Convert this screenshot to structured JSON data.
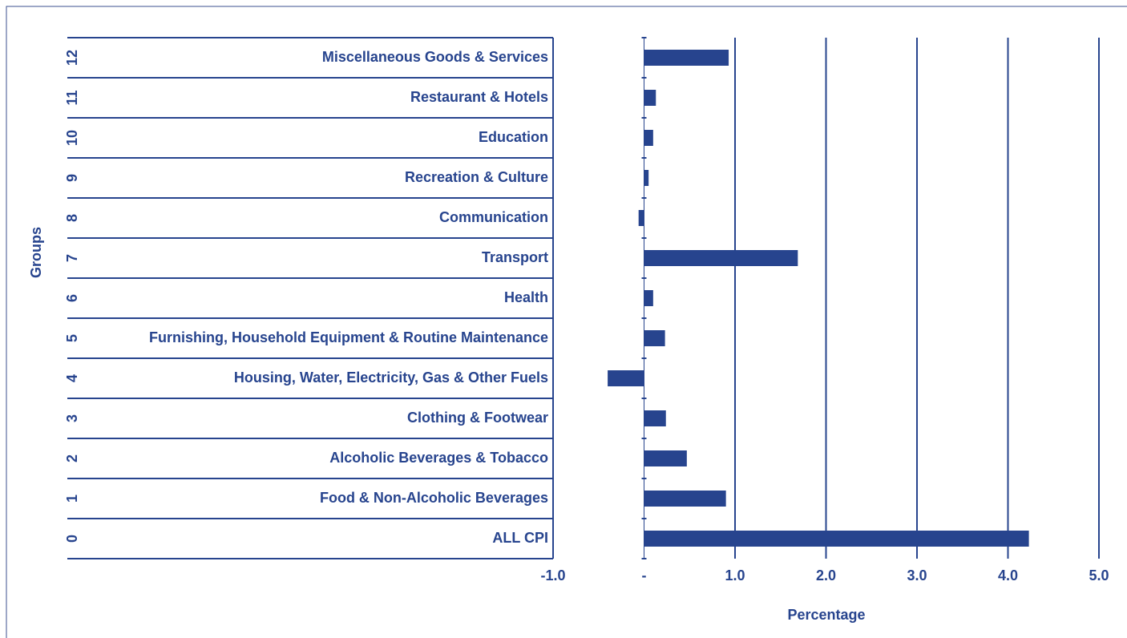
{
  "chart_data": {
    "type": "barh",
    "y_label": "Groups",
    "x_label": "Percentage",
    "groups": [
      "12",
      "11",
      "10",
      "9",
      "8",
      "7",
      "6",
      "5",
      "4",
      "3",
      "2",
      "1",
      "0"
    ],
    "categories": [
      "Miscellaneous Goods & Services",
      "Restaurant & Hotels",
      "Education",
      "Recreation & Culture",
      "Communication",
      "Transport",
      "Health",
      "Furnishing, Household Equipment & Routine Maintenance",
      "Housing, Water, Electricity,  Gas & Other Fuels",
      "Clothing & Footwear",
      "Alcoholic Beverages & Tobacco",
      "Food & Non-Alcoholic Beverages",
      "ALL CPI"
    ],
    "values": [
      0.93,
      0.13,
      0.1,
      0.05,
      -0.06,
      1.69,
      0.1,
      0.23,
      -0.4,
      0.24,
      0.47,
      0.9,
      4.23
    ],
    "color": "#27448e",
    "xlim": [
      -1,
      5
    ],
    "xticks": [
      {
        "value": -1,
        "label": "-1.0"
      },
      {
        "value": 0,
        "label": "-"
      },
      {
        "value": 1,
        "label": "1.0"
      },
      {
        "value": 2,
        "label": "2.0"
      },
      {
        "value": 3,
        "label": "3.0"
      },
      {
        "value": 4,
        "label": "4.0"
      },
      {
        "value": 5,
        "label": "5.0"
      }
    ],
    "grid": true
  }
}
